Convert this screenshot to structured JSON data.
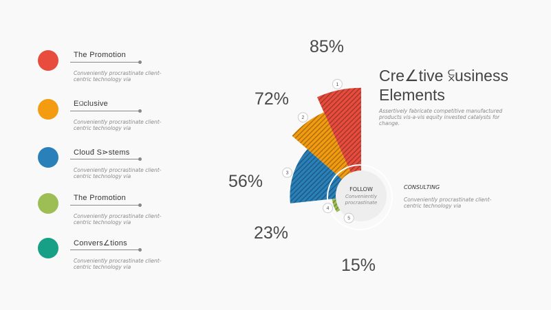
{
  "list": [
    {
      "title": "The  Promotion",
      "desc": "Conveniently procrastinate client-centric technology via",
      "color": "#e84c3d",
      "icon": "circle-icon"
    },
    {
      "title": "E⫑clusive",
      "desc": "Conveniently procrastinate client-centric technology via",
      "color": "#f39c12",
      "icon": "circle-icon"
    },
    {
      "title": "Clouđ  S⋗stems",
      "desc": "Conveniently procrastinate client-centric technology via",
      "color": "#2a80b9",
      "icon": "circle-icon"
    },
    {
      "title": "The  Promotion",
      "desc": "Conveniently procrastinate client-centric technology via",
      "color": "#9cbe55",
      "icon": "circle-icon"
    },
    {
      "title": "Convers∠tions",
      "desc": "Conveniently procrastinate client-centric technology via",
      "color": "#17a086",
      "icon": "circle-icon"
    }
  ],
  "heading": {
    "line1": "Cre∠tive  ⫁usiness",
    "line2": "Elements",
    "sub": "Assertively fabricate competitive manufactured products vis-a-vis equity invested catalysts for change."
  },
  "center": {
    "label": "FOLLOW",
    "sub1": "Conveniently",
    "sub2": "procrastinate"
  },
  "consulting": {
    "title": "CONSULTING",
    "desc": "Conveniently procrastinate client-centric technology via"
  },
  "chart_data": {
    "type": "pie",
    "values": [
      85,
      72,
      56,
      23,
      15
    ],
    "labels": [
      "85%",
      "72%",
      "56%",
      "23%",
      "15%"
    ],
    "markers": [
      "1",
      "2",
      "3",
      "4",
      "5"
    ],
    "colors": [
      "#e84c3d",
      "#f39c12",
      "#2a80b9",
      "#9cbe55",
      "#17a086"
    ]
  }
}
